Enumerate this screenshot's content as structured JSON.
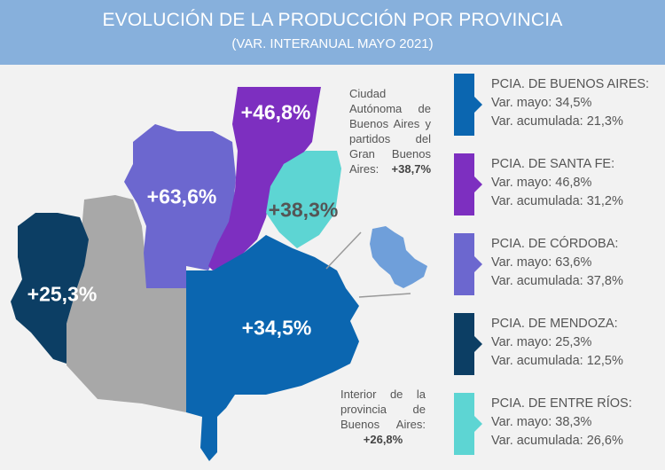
{
  "header": {
    "title": "EVOLUCIÓN DE LA PRODUCCIÓN POR PROVINCIA",
    "subtitle": "(VAR. INTERANUAL MAYO 2021)"
  },
  "map": {
    "labels": {
      "santa_fe": "+46,8%",
      "cordoba": "+63,6%",
      "entre_rios": "+38,3%",
      "mendoza": "+25,3%",
      "buenos_aires": "+34,5%"
    },
    "notes": {
      "caba_text": "Ciudad Autónoma de Buenos Aires y partidos del Gran Buenos Aires:",
      "caba_value": "+38,7%",
      "interior_text": "Interior de la provincia de Buenos Aires:",
      "interior_value": "+26,8%"
    }
  },
  "colors": {
    "buenos_aires": "#0b66b0",
    "santa_fe": "#7d2fc0",
    "cordoba": "#6c67cf",
    "mendoza": "#0c3e64",
    "entre_rios": "#5dd5d3",
    "other": "#a8a8a8",
    "inset": "#6f9fda"
  },
  "legend": [
    {
      "name": "PCIA. DE BUENOS AIRES:",
      "mayo": "Var. mayo: 34,5%",
      "acumulada": "Var. acumulada: 21,3%",
      "color": "#0b66b0"
    },
    {
      "name": "PCIA. DE SANTA FE:",
      "mayo": "Var. mayo: 46,8%",
      "acumulada": "Var. acumulada: 31,2%",
      "color": "#7d2fc0"
    },
    {
      "name": "PCIA. DE CÓRDOBA:",
      "mayo": "Var. mayo: 63,6%",
      "acumulada": "Var. acumulada: 37,8%",
      "color": "#6c67cf"
    },
    {
      "name": "PCIA. DE MENDOZA:",
      "mayo": "Var. mayo: 25,3%",
      "acumulada": "Var. acumulada: 12,5%",
      "color": "#0c3e64"
    },
    {
      "name": "PCIA. DE ENTRE RÍOS:",
      "mayo": "Var. mayo: 38,3%",
      "acumulada": "Var. acumulada: 26,6%",
      "color": "#5dd5d3"
    }
  ]
}
